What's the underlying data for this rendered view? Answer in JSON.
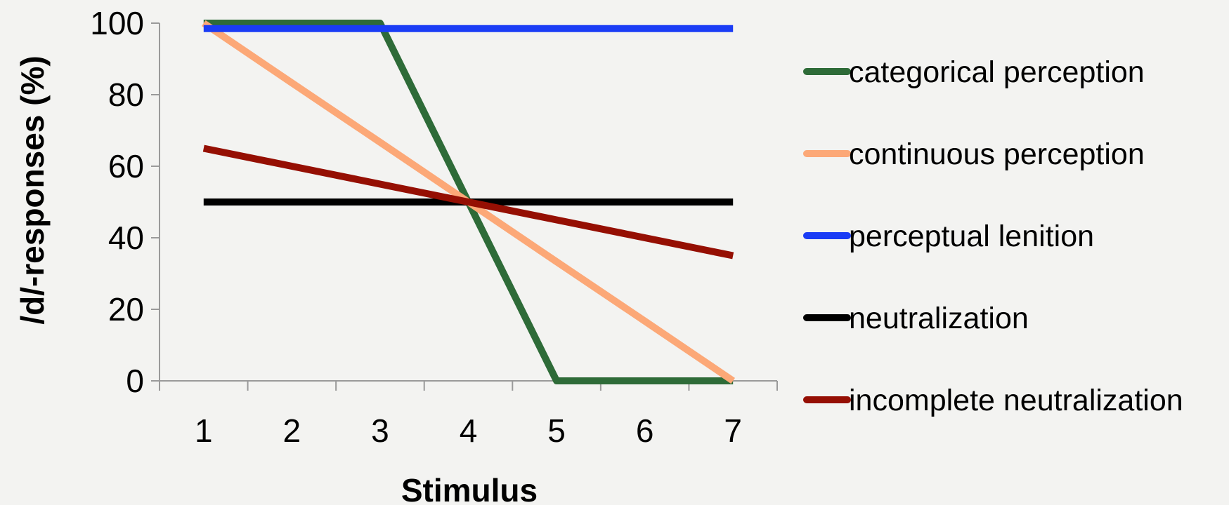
{
  "chart_data": {
    "type": "line",
    "title": "",
    "xlabel": "Stimulus",
    "ylabel": "/d/-responses (%)",
    "x": [
      1,
      2,
      3,
      4,
      5,
      6,
      7
    ],
    "ylim": [
      0,
      100
    ],
    "yticks": [
      0,
      20,
      40,
      60,
      80,
      100
    ],
    "grid": false,
    "legend_position": "right",
    "series": [
      {
        "name": "categorical perception",
        "color": "#2e6b38",
        "values": [
          100,
          100,
          100,
          50,
          0,
          0,
          0
        ]
      },
      {
        "name": "continuous perception",
        "color": "#fca877",
        "values": [
          100,
          83.3,
          66.7,
          50,
          33.3,
          16.7,
          0
        ]
      },
      {
        "name": "perceptual lenition",
        "color": "#1a3cf5",
        "values": [
          98.5,
          98.5,
          98.5,
          98.5,
          98.5,
          98.5,
          98.5
        ]
      },
      {
        "name": "neutralization",
        "color": "#000000",
        "values": [
          50,
          50,
          50,
          50,
          50,
          50,
          50
        ]
      },
      {
        "name": "incomplete neutralization",
        "color": "#950f03",
        "values": [
          65,
          60,
          55,
          50,
          45,
          40,
          35
        ]
      }
    ]
  }
}
